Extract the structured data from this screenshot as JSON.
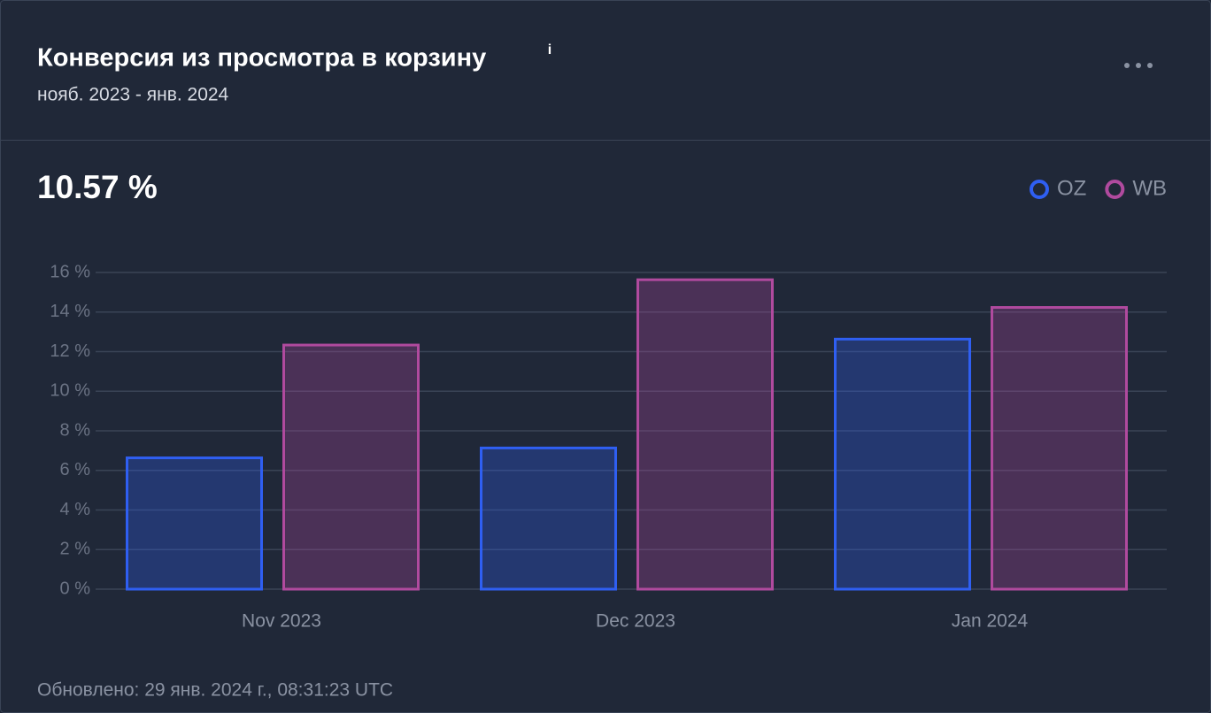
{
  "header": {
    "title": "Конверсия из просмотра в корзину",
    "subtitle": "нояб. 2023 - янв. 2024"
  },
  "summary": {
    "value": "10.57 %"
  },
  "chart_data": {
    "type": "bar",
    "categories": [
      "Nov 2023",
      "Dec 2023",
      "Jan 2024"
    ],
    "series": [
      {
        "name": "OZ",
        "color": "#2f5ff2",
        "values": [
          6.7,
          7.2,
          12.7
        ]
      },
      {
        "name": "WB",
        "color": "#b04a9e",
        "values": [
          12.4,
          15.7,
          14.3
        ]
      }
    ],
    "ylim": [
      0,
      16
    ],
    "yticks": [
      {
        "value": 0,
        "label": "0 %"
      },
      {
        "value": 2,
        "label": "2 %"
      },
      {
        "value": 4,
        "label": "4 %"
      },
      {
        "value": 6,
        "label": "6 %"
      },
      {
        "value": 8,
        "label": "8 %"
      },
      {
        "value": 10,
        "label": "10 %"
      },
      {
        "value": 12,
        "label": "12 %"
      },
      {
        "value": 14,
        "label": "14 %"
      },
      {
        "value": 16,
        "label": "16 %"
      }
    ],
    "grid": true,
    "legend": "top-right"
  },
  "footer": {
    "updated": "Обновлено: 29 янв. 2024 г., 08:31:23 UTC"
  }
}
